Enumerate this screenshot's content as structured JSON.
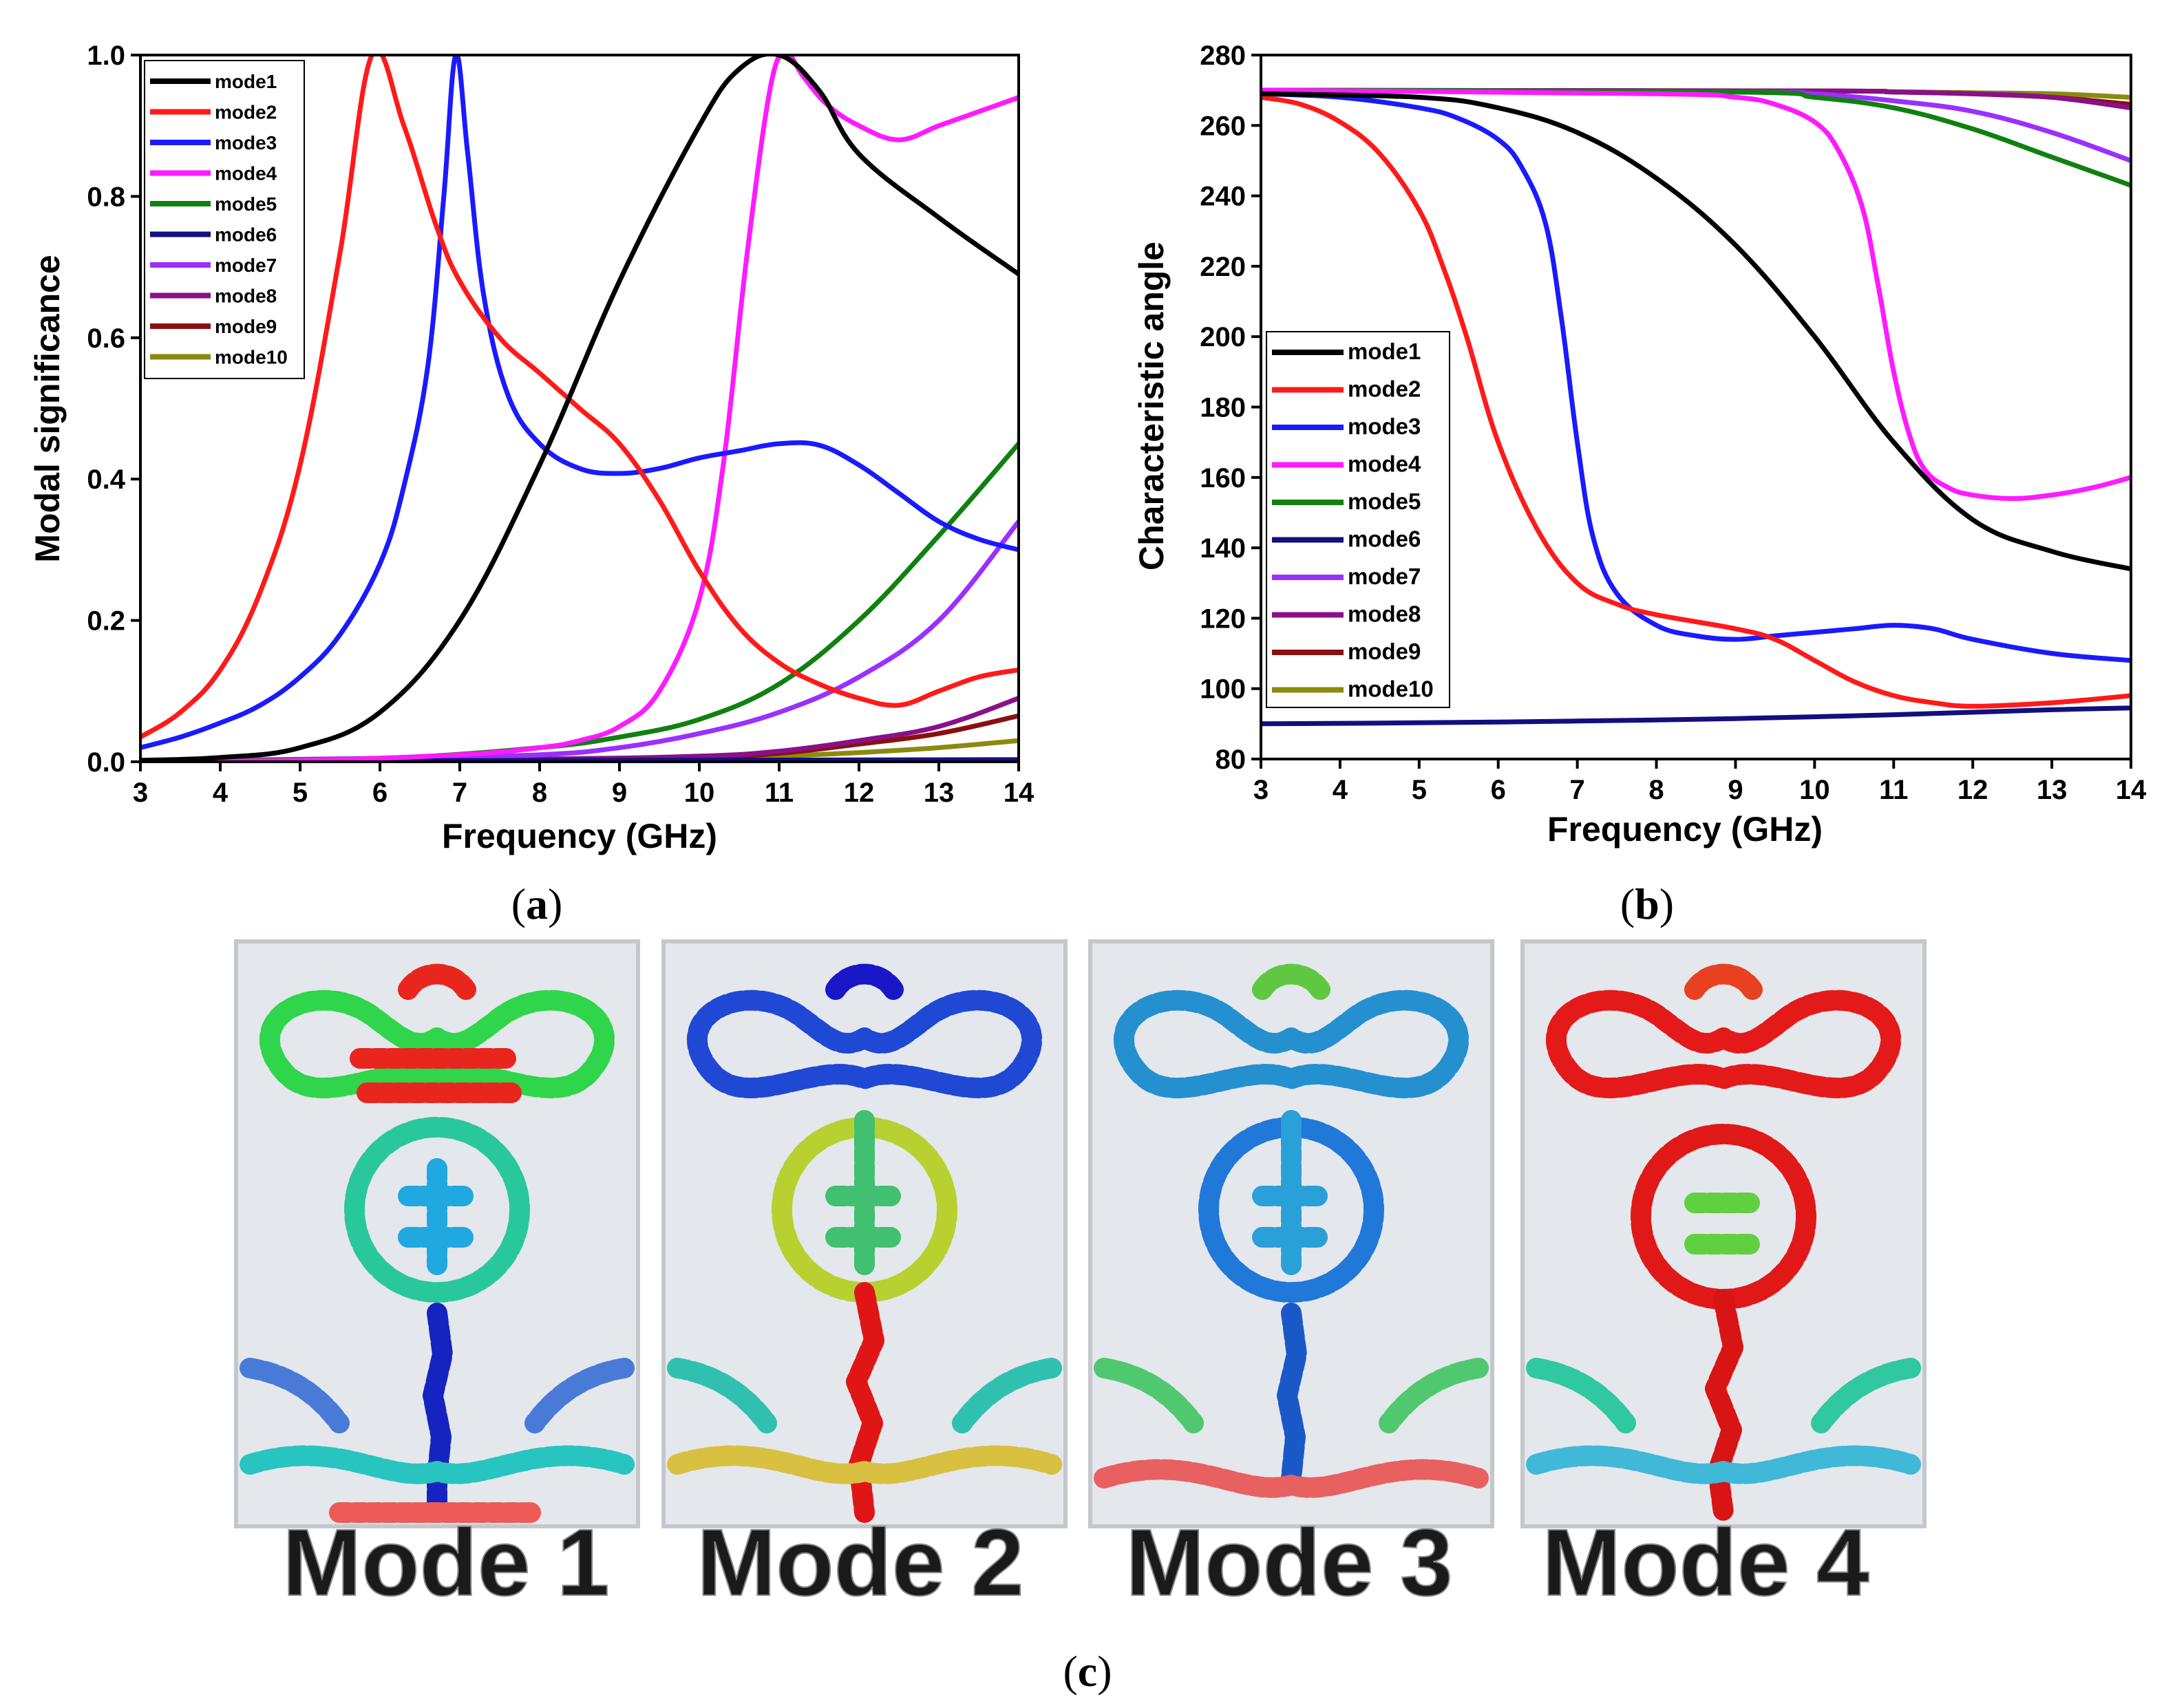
{
  "colors": {
    "mode1": "#000000",
    "mode2": "#ff1a1a",
    "mode3": "#1a1aff",
    "mode4": "#ff1aff",
    "mode5": "#108010",
    "mode6": "#101080",
    "mode7": "#9a30ff",
    "mode8": "#8a108a",
    "mode9": "#8a1010",
    "mode10": "#8a8a10"
  },
  "chart_data": [
    {
      "id": "a",
      "type": "line",
      "xlabel": "Frequency (GHz)",
      "ylabel": "Modal significance",
      "xlim": [
        3,
        14
      ],
      "ylim": [
        0,
        1
      ],
      "xticks": [
        3,
        4,
        5,
        6,
        7,
        8,
        9,
        10,
        11,
        12,
        13,
        14
      ],
      "yticks": [
        0,
        0.2,
        0.4,
        0.6,
        0.8,
        1.0
      ],
      "ytick_labels": [
        "0.0",
        "0.2",
        "0.4",
        "0.6",
        "0.8",
        "1.0"
      ],
      "legend_position": "top-left",
      "caption": "a",
      "series": [
        {
          "name": "mode1",
          "x": [
            3,
            4,
            5,
            6,
            7,
            8,
            9,
            10,
            10.5,
            11,
            11.5,
            12,
            13,
            14
          ],
          "y": [
            0.002,
            0.006,
            0.02,
            0.07,
            0.2,
            0.42,
            0.68,
            0.9,
            0.98,
            1.0,
            0.95,
            0.86,
            0.77,
            0.69
          ]
        },
        {
          "name": "mode2",
          "x": [
            3,
            3.5,
            4,
            4.5,
            5,
            5.5,
            5.9,
            6.3,
            6.7,
            7,
            7.5,
            8,
            8.5,
            9,
            9.5,
            10,
            10.5,
            11,
            11.5,
            12,
            12.5,
            13,
            13.5,
            14
          ],
          "y": [
            0.035,
            0.07,
            0.13,
            0.24,
            0.42,
            0.72,
            1.0,
            0.9,
            0.76,
            0.68,
            0.6,
            0.55,
            0.5,
            0.45,
            0.37,
            0.27,
            0.19,
            0.14,
            0.11,
            0.09,
            0.08,
            0.1,
            0.12,
            0.13
          ]
        },
        {
          "name": "mode3",
          "x": [
            3,
            3.5,
            4,
            4.5,
            5,
            5.5,
            6,
            6.3,
            6.6,
            6.8,
            6.95,
            7.1,
            7.3,
            7.6,
            8,
            8.5,
            9,
            9.5,
            10,
            10.5,
            11,
            11.5,
            12,
            12.5,
            13,
            13.5,
            14
          ],
          "y": [
            0.02,
            0.035,
            0.055,
            0.08,
            0.12,
            0.18,
            0.28,
            0.39,
            0.56,
            0.8,
            1.0,
            0.86,
            0.66,
            0.52,
            0.45,
            0.415,
            0.408,
            0.415,
            0.43,
            0.44,
            0.45,
            0.448,
            0.42,
            0.38,
            0.34,
            0.315,
            0.3
          ]
        },
        {
          "name": "mode4",
          "x": [
            3,
            5,
            7,
            8,
            8.5,
            9,
            9.5,
            10,
            10.3,
            10.6,
            10.9,
            11.1,
            11.3,
            11.6,
            12,
            12.5,
            13,
            13.5,
            14
          ],
          "y": [
            0.001,
            0.002,
            0.01,
            0.02,
            0.03,
            0.05,
            0.1,
            0.23,
            0.42,
            0.72,
            0.96,
            1.0,
            0.97,
            0.93,
            0.9,
            0.88,
            0.9,
            0.92,
            0.94
          ]
        },
        {
          "name": "mode5",
          "x": [
            3,
            6,
            8,
            9,
            10,
            11,
            12,
            13,
            14
          ],
          "y": [
            0.001,
            0.005,
            0.02,
            0.035,
            0.06,
            0.11,
            0.2,
            0.32,
            0.45
          ]
        },
        {
          "name": "mode6",
          "x": [
            3,
            14
          ],
          "y": [
            0.001,
            0.003
          ]
        },
        {
          "name": "mode7",
          "x": [
            3,
            6,
            8,
            9,
            10,
            11,
            12,
            13,
            14
          ],
          "y": [
            0.001,
            0.005,
            0.01,
            0.02,
            0.04,
            0.07,
            0.12,
            0.2,
            0.34
          ]
        },
        {
          "name": "mode8",
          "x": [
            3,
            8,
            10,
            11,
            12,
            13,
            14
          ],
          "y": [
            0.001,
            0.004,
            0.008,
            0.015,
            0.03,
            0.05,
            0.09
          ]
        },
        {
          "name": "mode9",
          "x": [
            3,
            8,
            10,
            11,
            12,
            13,
            14
          ],
          "y": [
            0.001,
            0.003,
            0.006,
            0.012,
            0.025,
            0.04,
            0.065
          ]
        },
        {
          "name": "mode10",
          "x": [
            3,
            8,
            10,
            11,
            12,
            13,
            14
          ],
          "y": [
            0.001,
            0.002,
            0.004,
            0.008,
            0.013,
            0.02,
            0.03
          ]
        }
      ]
    },
    {
      "id": "b",
      "type": "line",
      "xlabel": "Frequency (GHz)",
      "ylabel": "Characteristic angle",
      "xlim": [
        3,
        14
      ],
      "ylim": [
        80,
        280
      ],
      "xticks": [
        3,
        4,
        5,
        6,
        7,
        8,
        9,
        10,
        11,
        12,
        13,
        14
      ],
      "yticks": [
        80,
        100,
        120,
        140,
        160,
        180,
        200,
        220,
        240,
        260,
        280
      ],
      "ytick_labels": [
        "80",
        "100",
        "120",
        "140",
        "160",
        "180",
        "200",
        "220",
        "240",
        "260",
        "280"
      ],
      "legend_position": "middle-left",
      "caption": "b",
      "series": [
        {
          "name": "mode1",
          "x": [
            3,
            5,
            6,
            7,
            8,
            9,
            10,
            11,
            12,
            13,
            14
          ],
          "y": [
            269,
            268,
            265,
            258,
            245,
            226,
            200,
            170,
            148,
            139,
            134
          ]
        },
        {
          "name": "mode2",
          "x": [
            3,
            3.5,
            4,
            4.5,
            5,
            5.3,
            5.6,
            6,
            6.5,
            7,
            7.5,
            8,
            9,
            9.5,
            10,
            10.5,
            11,
            11.5,
            12,
            13,
            14
          ],
          "y": [
            268,
            266,
            261,
            252,
            236,
            220,
            200,
            170,
            145,
            130,
            124,
            121,
            117,
            114,
            108,
            102,
            98,
            96,
            95,
            96,
            98
          ]
        },
        {
          "name": "mode3",
          "x": [
            3,
            4,
            5,
            5.5,
            6,
            6.3,
            6.6,
            6.8,
            7,
            7.2,
            7.5,
            8,
            8.5,
            9,
            9.5,
            10,
            10.5,
            11,
            11.5,
            12,
            13,
            14
          ],
          "y": [
            269,
            268,
            265,
            262,
            256,
            248,
            232,
            205,
            170,
            143,
            127,
            118,
            115,
            114,
            115,
            116,
            117,
            118,
            117,
            114,
            110,
            108
          ]
        },
        {
          "name": "mode4",
          "x": [
            3,
            8,
            9,
            9.5,
            10,
            10.3,
            10.6,
            10.8,
            11,
            11.2,
            11.4,
            11.7,
            12,
            12.5,
            13,
            13.5,
            14
          ],
          "y": [
            270,
            269,
            268,
            266,
            261,
            253,
            237,
            215,
            190,
            172,
            162,
            157,
            155,
            154,
            155,
            157,
            160
          ]
        },
        {
          "name": "mode5",
          "x": [
            3,
            9,
            10,
            11,
            12,
            13,
            14
          ],
          "y": [
            270,
            269.5,
            268,
            265,
            259,
            251,
            243
          ]
        },
        {
          "name": "mode6",
          "x": [
            3,
            5,
            7,
            9,
            11,
            13,
            14
          ],
          "y": [
            90,
            90.3,
            90.8,
            91.5,
            92.6,
            94,
            94.5
          ]
        },
        {
          "name": "mode7",
          "x": [
            3,
            9,
            10,
            11,
            12,
            13,
            14
          ],
          "y": [
            270,
            269.5,
            269,
            267,
            264,
            258,
            250
          ]
        },
        {
          "name": "mode8",
          "x": [
            3,
            10,
            11,
            12,
            13,
            14
          ],
          "y": [
            270,
            269.8,
            269.5,
            269,
            268,
            265
          ]
        },
        {
          "name": "mode9",
          "x": [
            3,
            10,
            11,
            12,
            13,
            14
          ],
          "y": [
            270,
            269.8,
            269.5,
            269,
            268,
            266
          ]
        },
        {
          "name": "mode10",
          "x": [
            3,
            10,
            11,
            12,
            13,
            14
          ],
          "y": [
            270,
            269.8,
            269.6,
            269.3,
            269,
            268
          ]
        }
      ]
    }
  ],
  "panel_c": {
    "caption": "c",
    "modes": [
      "Mode 1",
      "Mode 2",
      "Mode 3",
      "Mode 4"
    ]
  }
}
